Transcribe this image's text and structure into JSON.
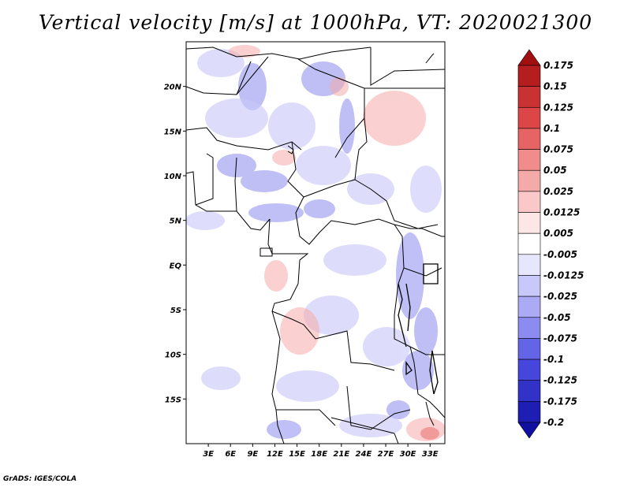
{
  "title": "Vertical velocity [m/s] at 1000hPa, VT: 2020021300",
  "credit": "GrADS: IGES/COLA",
  "map": {
    "lon_range": [
      0,
      35
    ],
    "lat_range": [
      -20,
      25
    ],
    "lat_ticks": [
      {
        "lat": 20,
        "label": "20N"
      },
      {
        "lat": 15,
        "label": "15N"
      },
      {
        "lat": 10,
        "label": "10N"
      },
      {
        "lat": 5,
        "label": "5N"
      },
      {
        "lat": 0,
        "label": "EQ"
      },
      {
        "lat": -5,
        "label": "5S"
      },
      {
        "lat": -10,
        "label": "10S"
      },
      {
        "lat": -15,
        "label": "15S"
      }
    ],
    "lon_ticks": [
      {
        "lon": 3,
        "label": "3E"
      },
      {
        "lon": 6,
        "label": "6E"
      },
      {
        "lon": 9,
        "label": "9E"
      },
      {
        "lon": 12,
        "label": "12E"
      },
      {
        "lon": 15,
        "label": "15E"
      },
      {
        "lon": 18,
        "label": "18E"
      },
      {
        "lon": 21,
        "label": "21E"
      },
      {
        "lon": 24,
        "label": "24E"
      },
      {
        "lon": 27,
        "label": "27E"
      },
      {
        "lon": 30,
        "label": "30E"
      },
      {
        "lon": 33,
        "label": "33E"
      }
    ]
  },
  "colorbar": {
    "labels": [
      "0.175",
      "0.15",
      "0.125",
      "0.1",
      "0.075",
      "0.05",
      "0.025",
      "0.0125",
      "0.005",
      "-0.005",
      "-0.0125",
      "-0.025",
      "-0.05",
      "-0.075",
      "-0.1",
      "-0.125",
      "-0.175",
      "-0.2"
    ],
    "colors": [
      "#a01010",
      "#b41e1e",
      "#c83232",
      "#dc4646",
      "#e66464",
      "#f08c8c",
      "#f5aaaa",
      "#fac8c8",
      "#fde6e6",
      "#ffffff",
      "#e6e6fd",
      "#c8c8fa",
      "#aaaaf5",
      "#8c8cf0",
      "#6464e6",
      "#4646dc",
      "#3232c8",
      "#1e1eb4",
      "#1010a0"
    ]
  }
}
